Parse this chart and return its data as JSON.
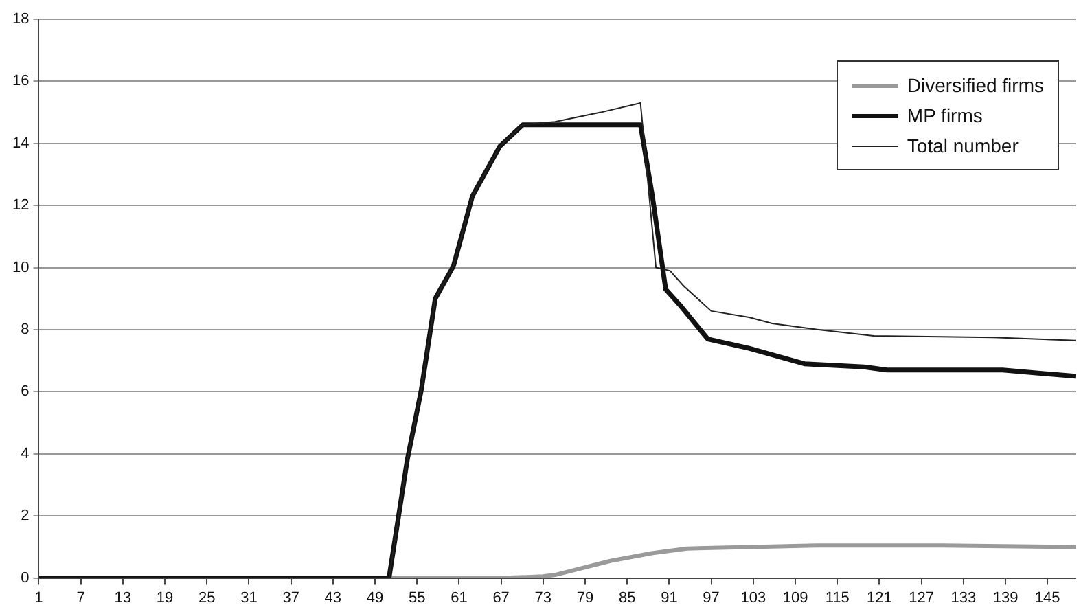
{
  "chart_data": {
    "type": "line",
    "xlim": [
      1,
      149
    ],
    "xticks": [
      1,
      7,
      13,
      19,
      25,
      31,
      37,
      43,
      49,
      55,
      61,
      67,
      73,
      79,
      85,
      91,
      97,
      103,
      109,
      115,
      121,
      127,
      133,
      139,
      145
    ],
    "ylim": [
      0,
      18
    ],
    "yticks": [
      0,
      2,
      4,
      6,
      8,
      10,
      12,
      14,
      16,
      18
    ],
    "grid": "y",
    "legend": "top right",
    "marker": "none",
    "series": [
      {
        "name": "Diversified firms",
        "color": "#9a9a9a",
        "x": [
          1,
          67,
          73,
          74.7,
          82.6,
          88.5,
          93.5,
          112,
          130,
          149
        ],
        "values": [
          0,
          0,
          0.05,
          0.1,
          0.55,
          0.8,
          0.95,
          1.05,
          1.05,
          1.0
        ]
      },
      {
        "name": "MP firms",
        "color": "#111111",
        "x": [
          1,
          50,
          51,
          53.6,
          55.6,
          57.6,
          60.2,
          62.9,
          66.8,
          70.1,
          86.9,
          88.6,
          90.5,
          92.5,
          96.5,
          102.4,
          110.3,
          118.8,
          122.1,
          138.6,
          149
        ],
        "values": [
          0,
          0,
          0,
          3.8,
          6.05,
          9.0,
          10.05,
          12.3,
          13.9,
          14.6,
          14.6,
          12.3,
          9.3,
          8.8,
          7.7,
          7.4,
          6.9,
          6.8,
          6.7,
          6.7,
          6.5
        ]
      },
      {
        "name": "Total number",
        "color": "#222222",
        "x": [
          1,
          50,
          51,
          53.6,
          55.6,
          57.6,
          60.2,
          62.9,
          66.8,
          70.1,
          74.7,
          81.2,
          86.9,
          89.1,
          91.1,
          93.1,
          97,
          102.4,
          105.7,
          112.3,
          120.2,
          137.3,
          149
        ],
        "values": [
          0,
          0,
          0,
          3.8,
          6.05,
          9.0,
          10.05,
          12.3,
          13.9,
          14.6,
          14.7,
          15.0,
          15.3,
          10.0,
          9.9,
          9.4,
          8.6,
          8.4,
          8.2,
          8.0,
          7.8,
          7.75,
          7.65
        ]
      }
    ]
  }
}
